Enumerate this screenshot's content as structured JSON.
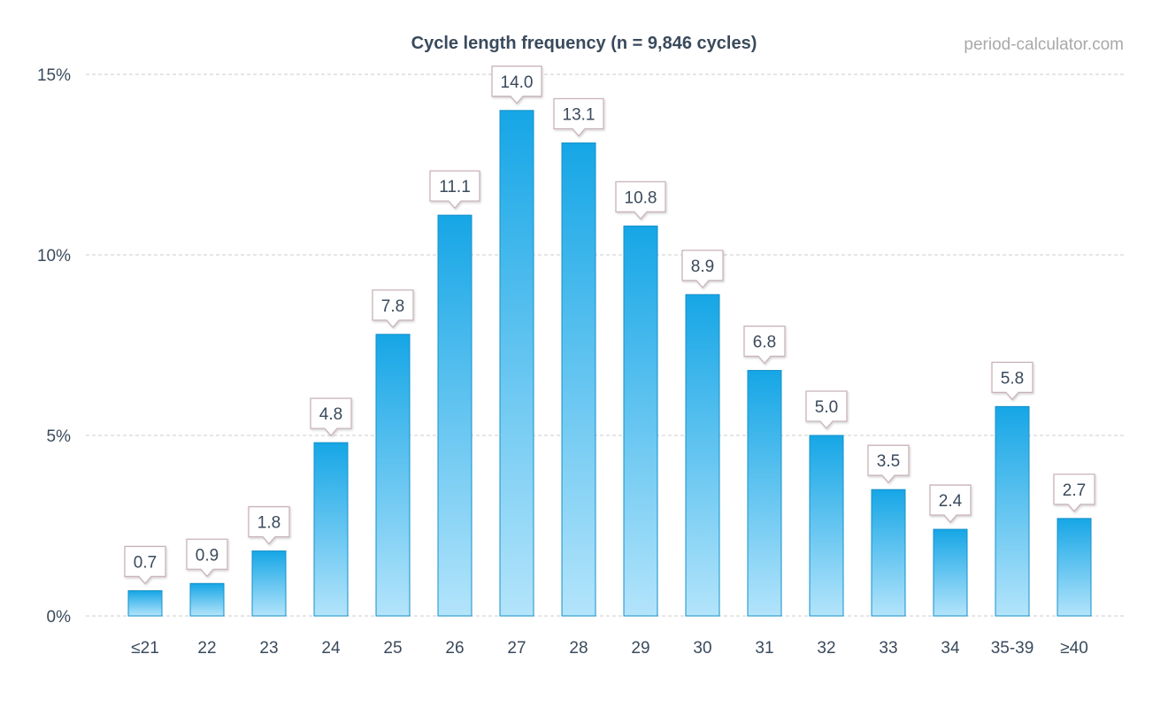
{
  "chart_data": {
    "type": "bar",
    "title": "Cycle length frequency (n = 9,846 cycles)",
    "credit": "period-calculator.com",
    "categories": [
      "≤21",
      "22",
      "23",
      "24",
      "25",
      "26",
      "27",
      "28",
      "29",
      "30",
      "31",
      "32",
      "33",
      "34",
      "35-39",
      "≥40"
    ],
    "values": [
      0.7,
      0.9,
      1.8,
      4.8,
      7.8,
      11.1,
      14.0,
      13.1,
      10.8,
      8.9,
      6.8,
      5.0,
      3.5,
      2.4,
      5.8,
      2.7
    ],
    "labels": [
      "0.7",
      "0.9",
      "1.8",
      "4.8",
      "7.8",
      "11.1",
      "14.0",
      "13.1",
      "10.8",
      "8.9",
      "6.8",
      "5.0",
      "3.5",
      "2.4",
      "5.8",
      "2.7"
    ],
    "ylim": [
      0,
      15
    ],
    "yticks": [
      0,
      5,
      10,
      15
    ],
    "ytick_labels": [
      "0%",
      "5%",
      "10%",
      "15%"
    ],
    "xlabel": "",
    "ylabel": "",
    "grid": true,
    "colors": {
      "bar_top": "#16a6e6",
      "bar_bottom": "#b3e4fb",
      "bar_stroke": "#1590c8",
      "grid": "#cccccc",
      "label_border": "#c9b3b8",
      "text": "#3a4a5c"
    }
  }
}
